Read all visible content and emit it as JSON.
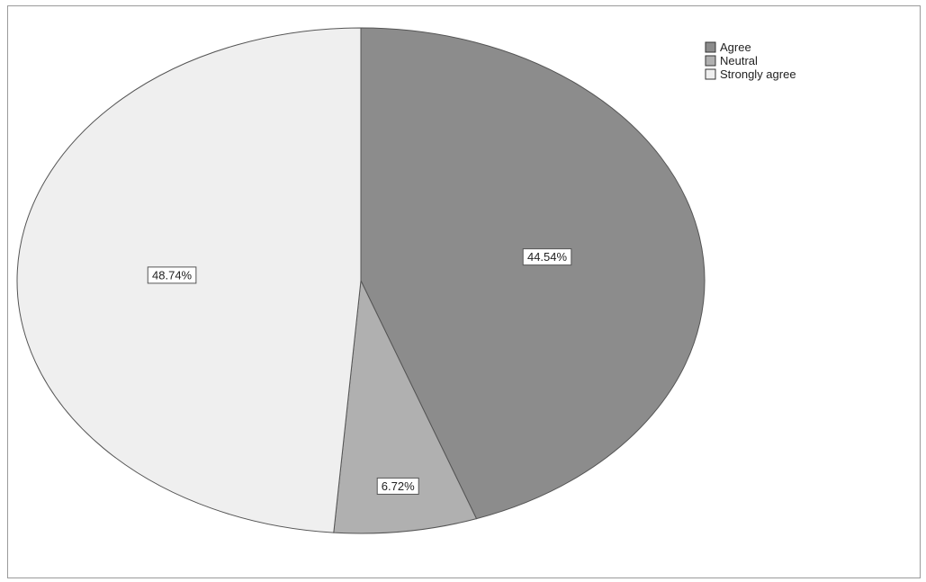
{
  "chart_data": {
    "type": "pie",
    "slices": [
      {
        "label": "Agree",
        "value": 44.54,
        "display": "44.54%",
        "color": "#8c8c8c"
      },
      {
        "label": "Neutral",
        "value": 6.72,
        "display": "6.72%",
        "color": "#b0b0b0"
      },
      {
        "label": "Strongly agree",
        "value": 48.74,
        "display": "48.74%",
        "color": "#efefef"
      }
    ],
    "legend": {
      "placement": "top-right",
      "items": [
        "Agree",
        "Neutral",
        "Strongly agree"
      ]
    },
    "start_angle_deg": 0,
    "direction": "clockwise"
  }
}
